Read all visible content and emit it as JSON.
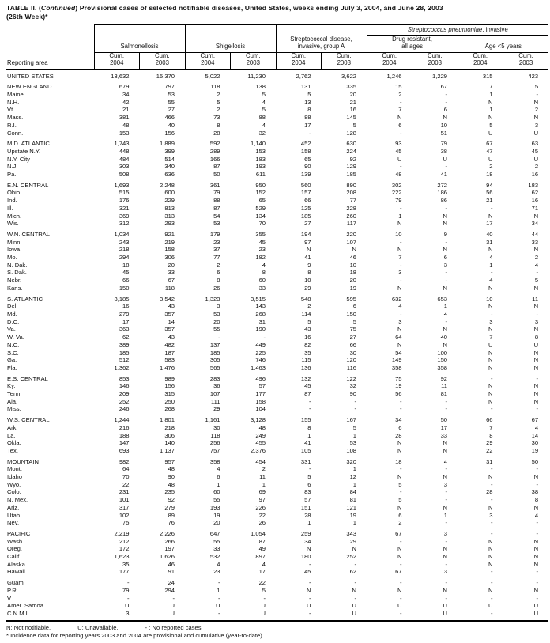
{
  "title": {
    "prefix": "TABLE II. (",
    "continued": "Continued",
    "rest": ") Provisional cases of selected notifiable diseases, United States, weeks ending July 3, 2004, and June 28, 2003",
    "line2": "(26th Week)*"
  },
  "table": {
    "reporting_area_label": "Reporting area",
    "pneumo_group": {
      "italic": "Streptococcus pneumoniae",
      "rest": ", invasive"
    },
    "groups": [
      {
        "label": "Salmonellosis"
      },
      {
        "label": "Shigellosis"
      },
      {
        "label": "Streptococcal disease,\ninvasive, group A"
      },
      {
        "label": "Drug resistant,\nall ages"
      },
      {
        "label": "Age <5 years"
      }
    ],
    "cum2004": "Cum.\n2004",
    "cum2003": "Cum.\n2003",
    "rows": [
      {
        "a": "UNITED STATES",
        "v": [
          "13,632",
          "15,370",
          "5,022",
          "11,230",
          "2,762",
          "3,622",
          "1,246",
          "1,229",
          "315",
          "423"
        ]
      },
      {
        "a": "NEW ENGLAND",
        "gap": true,
        "v": [
          "679",
          "797",
          "118",
          "138",
          "131",
          "335",
          "15",
          "67",
          "7",
          "5"
        ]
      },
      {
        "a": "Maine",
        "v": [
          "34",
          "53",
          "2",
          "5",
          "5",
          "20",
          "2",
          "-",
          "1",
          "-"
        ]
      },
      {
        "a": "N.H.",
        "v": [
          "42",
          "55",
          "5",
          "4",
          "13",
          "21",
          "-",
          "-",
          "N",
          "N"
        ]
      },
      {
        "a": "Vt.",
        "v": [
          "21",
          "27",
          "2",
          "5",
          "8",
          "16",
          "7",
          "6",
          "1",
          "2"
        ]
      },
      {
        "a": "Mass.",
        "v": [
          "381",
          "466",
          "73",
          "88",
          "88",
          "145",
          "N",
          "N",
          "N",
          "N"
        ]
      },
      {
        "a": "R.I.",
        "v": [
          "48",
          "40",
          "8",
          "4",
          "17",
          "5",
          "6",
          "10",
          "5",
          "3"
        ]
      },
      {
        "a": "Conn.",
        "v": [
          "153",
          "156",
          "28",
          "32",
          "-",
          "128",
          "-",
          "51",
          "U",
          "U"
        ]
      },
      {
        "a": "MID. ATLANTIC",
        "gap": true,
        "v": [
          "1,743",
          "1,889",
          "592",
          "1,140",
          "452",
          "630",
          "93",
          "79",
          "67",
          "63"
        ]
      },
      {
        "a": "Upstate N.Y.",
        "v": [
          "448",
          "399",
          "289",
          "153",
          "158",
          "224",
          "45",
          "38",
          "47",
          "45"
        ]
      },
      {
        "a": "N.Y. City",
        "v": [
          "484",
          "514",
          "166",
          "183",
          "65",
          "92",
          "U",
          "U",
          "U",
          "U"
        ]
      },
      {
        "a": "N.J.",
        "v": [
          "303",
          "340",
          "87",
          "193",
          "90",
          "129",
          "-",
          "-",
          "2",
          "2"
        ]
      },
      {
        "a": "Pa.",
        "v": [
          "508",
          "636",
          "50",
          "611",
          "139",
          "185",
          "48",
          "41",
          "18",
          "16"
        ]
      },
      {
        "a": "E.N. CENTRAL",
        "gap": true,
        "v": [
          "1,693",
          "2,248",
          "361",
          "950",
          "560",
          "890",
          "302",
          "272",
          "94",
          "183"
        ]
      },
      {
        "a": "Ohio",
        "v": [
          "515",
          "600",
          "79",
          "152",
          "157",
          "208",
          "222",
          "186",
          "56",
          "62"
        ]
      },
      {
        "a": "Ind.",
        "v": [
          "176",
          "229",
          "88",
          "65",
          "66",
          "77",
          "79",
          "86",
          "21",
          "16"
        ]
      },
      {
        "a": "Ill.",
        "v": [
          "321",
          "813",
          "87",
          "529",
          "125",
          "228",
          "-",
          "-",
          "-",
          "71"
        ]
      },
      {
        "a": "Mich.",
        "v": [
          "369",
          "313",
          "54",
          "134",
          "185",
          "260",
          "1",
          "N",
          "N",
          "N"
        ]
      },
      {
        "a": "Wis.",
        "v": [
          "312",
          "293",
          "53",
          "70",
          "27",
          "117",
          "N",
          "N",
          "17",
          "34"
        ]
      },
      {
        "a": "W.N. CENTRAL",
        "gap": true,
        "v": [
          "1,034",
          "921",
          "179",
          "355",
          "194",
          "220",
          "10",
          "9",
          "40",
          "44"
        ]
      },
      {
        "a": "Minn.",
        "v": [
          "243",
          "219",
          "23",
          "45",
          "97",
          "107",
          "-",
          "-",
          "31",
          "33"
        ]
      },
      {
        "a": "Iowa",
        "v": [
          "218",
          "158",
          "37",
          "23",
          "N",
          "N",
          "N",
          "N",
          "N",
          "N"
        ]
      },
      {
        "a": "Mo.",
        "v": [
          "294",
          "306",
          "77",
          "182",
          "41",
          "46",
          "7",
          "6",
          "4",
          "2"
        ]
      },
      {
        "a": "N. Dak.",
        "v": [
          "18",
          "20",
          "2",
          "4",
          "9",
          "10",
          "-",
          "3",
          "1",
          "4"
        ]
      },
      {
        "a": "S. Dak.",
        "v": [
          "45",
          "33",
          "6",
          "8",
          "8",
          "18",
          "3",
          "-",
          "-",
          "-"
        ]
      },
      {
        "a": "Nebr.",
        "v": [
          "66",
          "67",
          "8",
          "60",
          "10",
          "20",
          "-",
          "-",
          "4",
          "5"
        ]
      },
      {
        "a": "Kans.",
        "v": [
          "150",
          "118",
          "26",
          "33",
          "29",
          "19",
          "N",
          "N",
          "N",
          "N"
        ]
      },
      {
        "a": "S. ATLANTIC",
        "gap": true,
        "v": [
          "3,185",
          "3,542",
          "1,323",
          "3,515",
          "548",
          "595",
          "632",
          "653",
          "10",
          "11"
        ]
      },
      {
        "a": "Del.",
        "v": [
          "16",
          "43",
          "3",
          "143",
          "2",
          "6",
          "4",
          "1",
          "N",
          "N"
        ]
      },
      {
        "a": "Md.",
        "v": [
          "279",
          "357",
          "53",
          "268",
          "114",
          "150",
          "-",
          "4",
          "-",
          "-"
        ]
      },
      {
        "a": "D.C.",
        "v": [
          "17",
          "14",
          "20",
          "31",
          "5",
          "5",
          "3",
          "-",
          "3",
          "3"
        ]
      },
      {
        "a": "Va.",
        "v": [
          "363",
          "357",
          "55",
          "190",
          "43",
          "75",
          "N",
          "N",
          "N",
          "N"
        ]
      },
      {
        "a": "W. Va.",
        "v": [
          "62",
          "43",
          "-",
          "-",
          "16",
          "27",
          "64",
          "40",
          "7",
          "8"
        ]
      },
      {
        "a": "N.C.",
        "v": [
          "389",
          "482",
          "137",
          "449",
          "82",
          "66",
          "N",
          "N",
          "U",
          "U"
        ]
      },
      {
        "a": "S.C.",
        "v": [
          "185",
          "187",
          "185",
          "225",
          "35",
          "30",
          "54",
          "100",
          "N",
          "N"
        ]
      },
      {
        "a": "Ga.",
        "v": [
          "512",
          "583",
          "305",
          "746",
          "115",
          "120",
          "149",
          "150",
          "N",
          "N"
        ]
      },
      {
        "a": "Fla.",
        "v": [
          "1,362",
          "1,476",
          "565",
          "1,463",
          "136",
          "116",
          "358",
          "358",
          "N",
          "N"
        ]
      },
      {
        "a": "E.S. CENTRAL",
        "gap": true,
        "v": [
          "853",
          "989",
          "283",
          "496",
          "132",
          "122",
          "75",
          "92",
          "-",
          "-"
        ]
      },
      {
        "a": "Ky.",
        "v": [
          "146",
          "156",
          "36",
          "57",
          "45",
          "32",
          "19",
          "11",
          "N",
          "N"
        ]
      },
      {
        "a": "Tenn.",
        "v": [
          "209",
          "315",
          "107",
          "177",
          "87",
          "90",
          "56",
          "81",
          "N",
          "N"
        ]
      },
      {
        "a": "Ala.",
        "v": [
          "252",
          "250",
          "111",
          "158",
          "-",
          "-",
          "-",
          "-",
          "N",
          "N"
        ]
      },
      {
        "a": "Miss.",
        "v": [
          "246",
          "268",
          "29",
          "104",
          "-",
          "-",
          "-",
          "-",
          "-",
          "-"
        ]
      },
      {
        "a": "W.S. CENTRAL",
        "gap": true,
        "v": [
          "1,244",
          "1,801",
          "1,161",
          "3,128",
          "155",
          "167",
          "34",
          "50",
          "66",
          "67"
        ]
      },
      {
        "a": "Ark.",
        "v": [
          "216",
          "218",
          "30",
          "48",
          "8",
          "5",
          "6",
          "17",
          "7",
          "4"
        ]
      },
      {
        "a": "La.",
        "v": [
          "188",
          "306",
          "118",
          "249",
          "1",
          "1",
          "28",
          "33",
          "8",
          "14"
        ]
      },
      {
        "a": "Okla.",
        "v": [
          "147",
          "140",
          "256",
          "455",
          "41",
          "53",
          "N",
          "N",
          "29",
          "30"
        ]
      },
      {
        "a": "Tex.",
        "v": [
          "693",
          "1,137",
          "757",
          "2,376",
          "105",
          "108",
          "N",
          "N",
          "22",
          "19"
        ]
      },
      {
        "a": "MOUNTAIN",
        "gap": true,
        "v": [
          "982",
          "957",
          "358",
          "454",
          "331",
          "320",
          "18",
          "4",
          "31",
          "50"
        ]
      },
      {
        "a": "Mont.",
        "v": [
          "64",
          "48",
          "4",
          "2",
          "-",
          "1",
          "-",
          "-",
          "-",
          "-"
        ]
      },
      {
        "a": "Idaho",
        "v": [
          "70",
          "90",
          "6",
          "11",
          "5",
          "12",
          "N",
          "N",
          "N",
          "N"
        ]
      },
      {
        "a": "Wyo.",
        "v": [
          "22",
          "48",
          "1",
          "1",
          "6",
          "1",
          "5",
          "3",
          "-",
          "-"
        ]
      },
      {
        "a": "Colo.",
        "v": [
          "231",
          "235",
          "60",
          "69",
          "83",
          "84",
          "-",
          "-",
          "28",
          "38"
        ]
      },
      {
        "a": "N. Mex.",
        "v": [
          "101",
          "92",
          "55",
          "97",
          "57",
          "81",
          "5",
          "-",
          "-",
          "8"
        ]
      },
      {
        "a": "Ariz.",
        "v": [
          "317",
          "279",
          "193",
          "226",
          "151",
          "121",
          "N",
          "N",
          "N",
          "N"
        ]
      },
      {
        "a": "Utah",
        "v": [
          "102",
          "89",
          "19",
          "22",
          "28",
          "19",
          "6",
          "1",
          "3",
          "4"
        ]
      },
      {
        "a": "Nev.",
        "v": [
          "75",
          "76",
          "20",
          "26",
          "1",
          "1",
          "2",
          "-",
          "-",
          "-"
        ]
      },
      {
        "a": "PACIFIC",
        "gap": true,
        "v": [
          "2,219",
          "2,226",
          "647",
          "1,054",
          "259",
          "343",
          "67",
          "3",
          "-",
          "-"
        ]
      },
      {
        "a": "Wash.",
        "v": [
          "212",
          "266",
          "55",
          "87",
          "34",
          "29",
          "-",
          "-",
          "N",
          "N"
        ]
      },
      {
        "a": "Oreg.",
        "v": [
          "172",
          "197",
          "33",
          "49",
          "N",
          "N",
          "N",
          "N",
          "N",
          "N"
        ]
      },
      {
        "a": "Calif.",
        "v": [
          "1,623",
          "1,626",
          "532",
          "897",
          "180",
          "252",
          "N",
          "N",
          "N",
          "N"
        ]
      },
      {
        "a": "Alaska",
        "v": [
          "35",
          "46",
          "4",
          "4",
          "-",
          "-",
          "-",
          "-",
          "N",
          "N"
        ]
      },
      {
        "a": "Hawaii",
        "v": [
          "177",
          "91",
          "23",
          "17",
          "45",
          "62",
          "67",
          "3",
          "-",
          "-"
        ]
      },
      {
        "a": "Guam",
        "gap": true,
        "v": [
          "-",
          "24",
          "-",
          "22",
          "-",
          "-",
          "-",
          "-",
          "-",
          "-"
        ]
      },
      {
        "a": "P.R.",
        "v": [
          "79",
          "294",
          "1",
          "5",
          "N",
          "N",
          "N",
          "N",
          "N",
          "N"
        ]
      },
      {
        "a": "V.I.",
        "v": [
          "-",
          "-",
          "-",
          "-",
          "-",
          "-",
          "-",
          "-",
          "-",
          "-"
        ]
      },
      {
        "a": "Amer. Samoa",
        "v": [
          "U",
          "U",
          "U",
          "U",
          "U",
          "U",
          "U",
          "U",
          "U",
          "U"
        ]
      },
      {
        "a": "C.N.M.I.",
        "v": [
          "3",
          "U",
          "-",
          "U",
          "-",
          "U",
          "-",
          "U",
          "-",
          "U"
        ]
      }
    ]
  },
  "footnotes": {
    "n": "N: Not notifiable.",
    "u": "U: Unavailable.",
    "dash": "- : No reported cases.",
    "asterisk": "* Incidence data for reporting years 2003 and 2004 are provisional and cumulative (year-to-date)."
  }
}
